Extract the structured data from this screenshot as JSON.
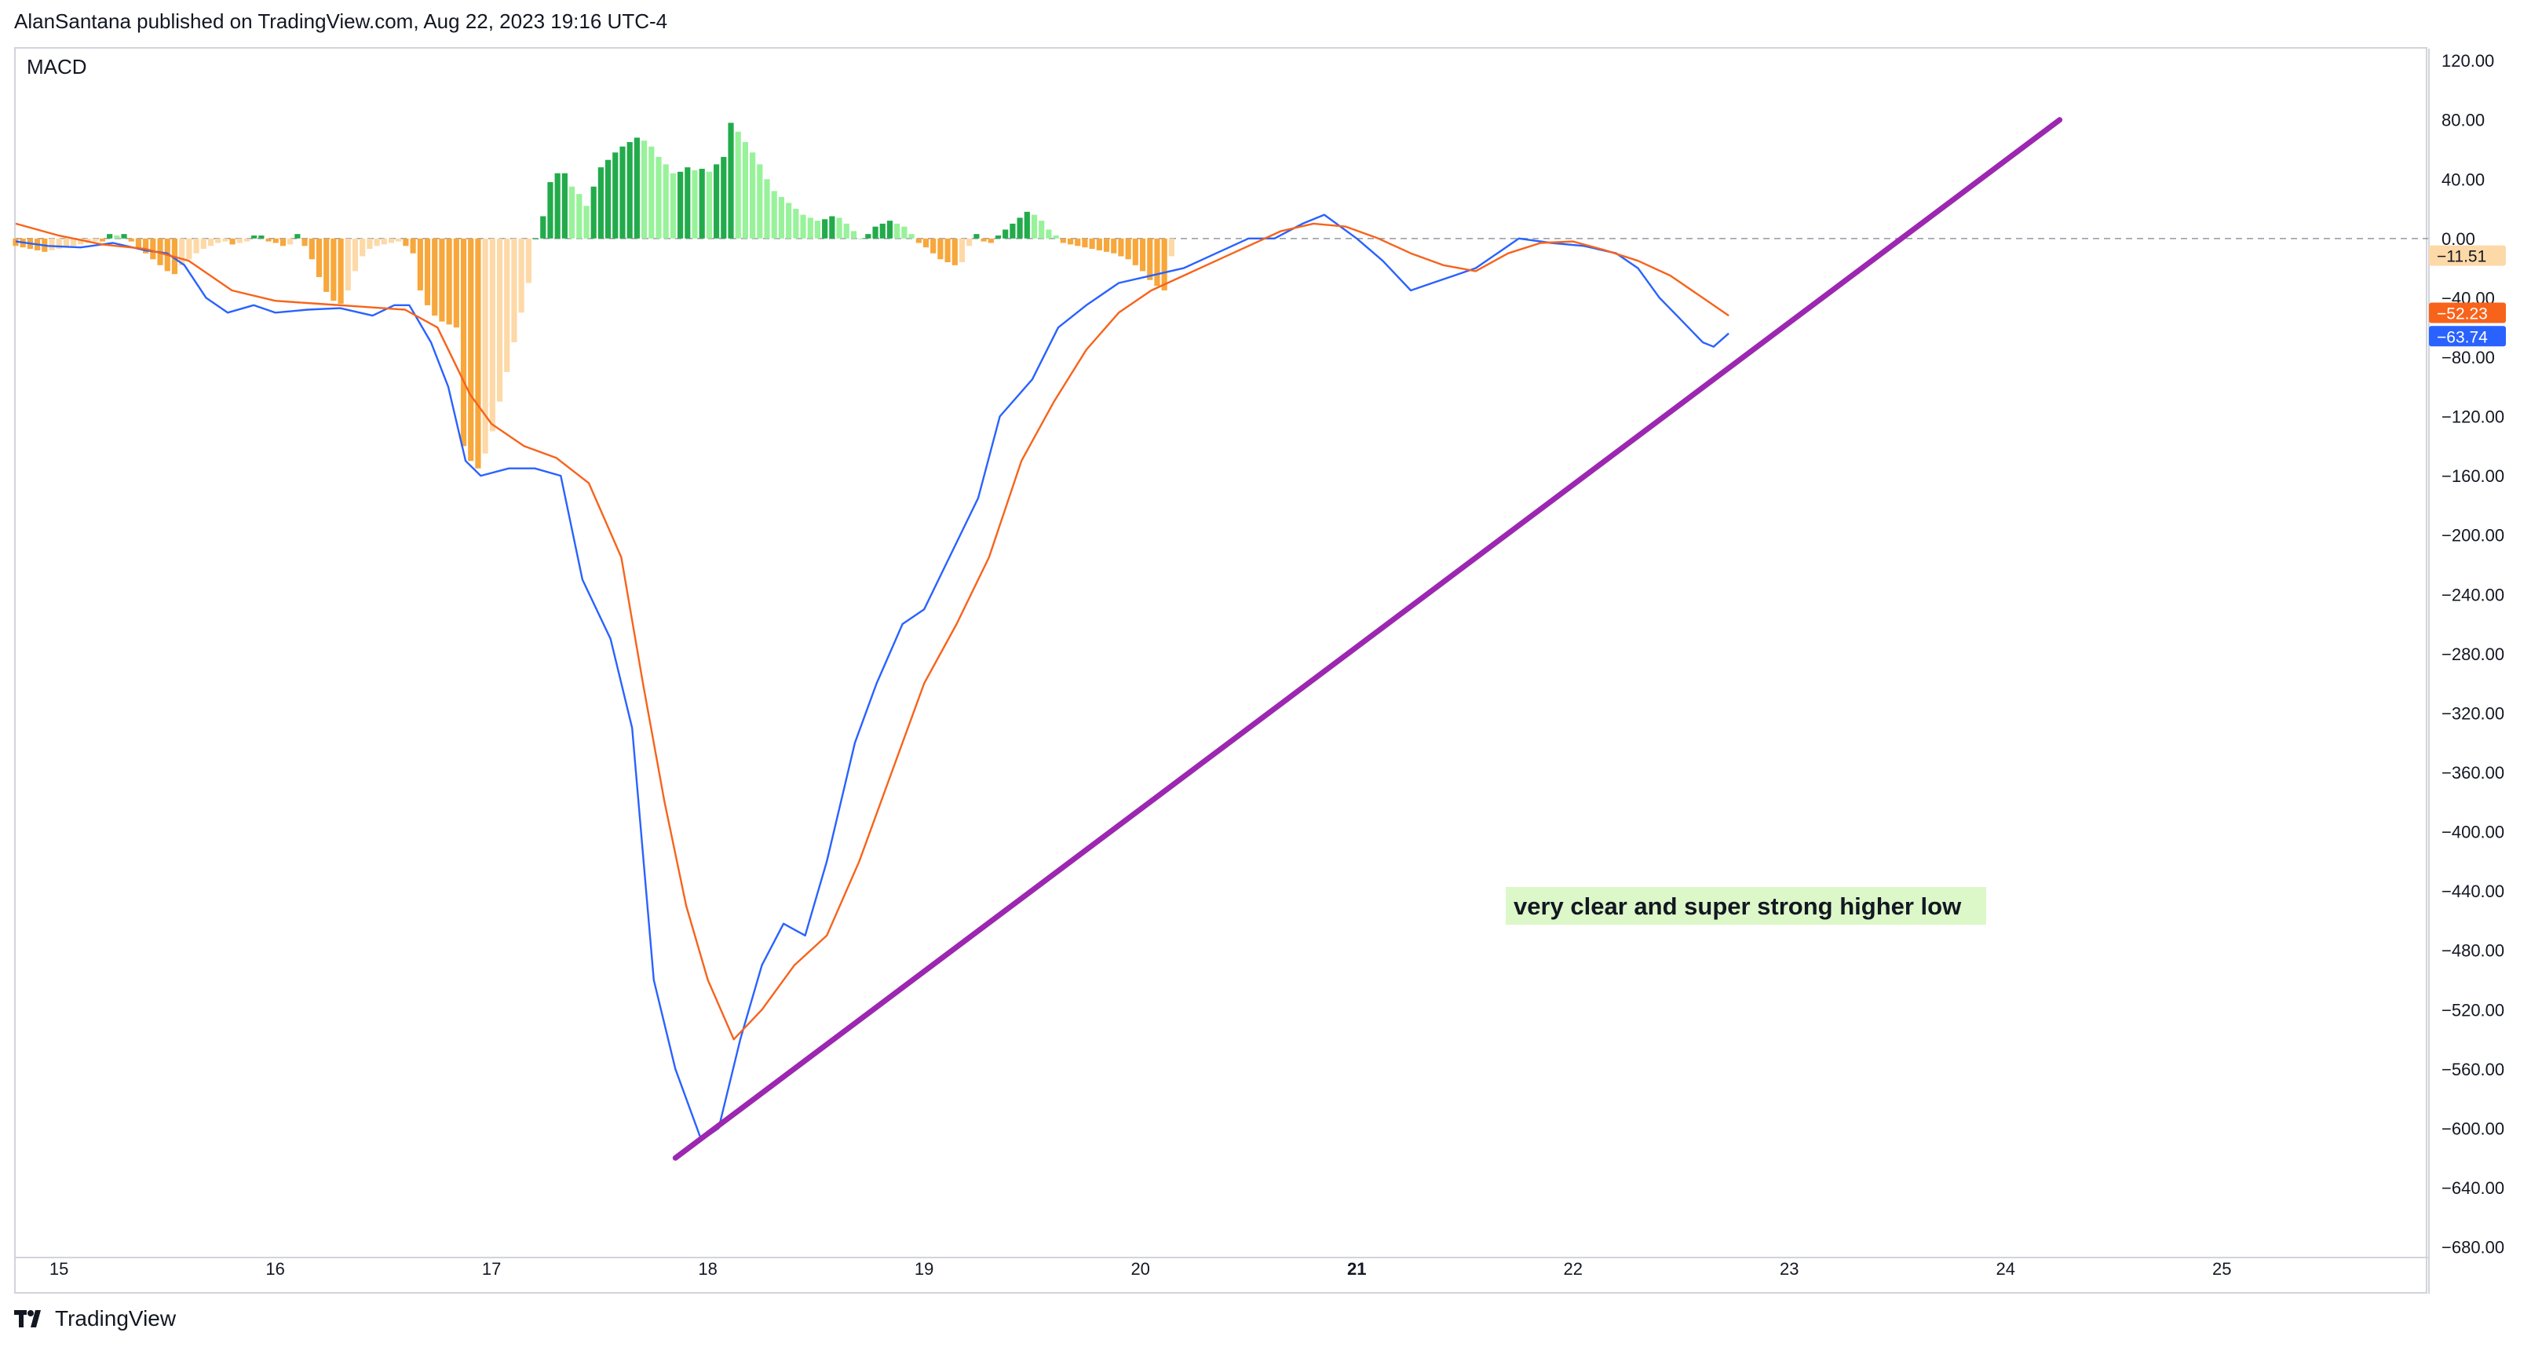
{
  "header": {
    "attribution": "AlanSantana published on TradingView.com, Aug 22, 2023 19:16 UTC-4"
  },
  "indicator": {
    "label": "MACD"
  },
  "footer": {
    "brand": "TradingView"
  },
  "annotation": {
    "text": "very clear and super strong higher low"
  },
  "chart_data": {
    "type": "line",
    "title": "MACD",
    "x_ticks": [
      {
        "x": 15,
        "label": "15",
        "bold": false
      },
      {
        "x": 16,
        "label": "16",
        "bold": false
      },
      {
        "x": 17,
        "label": "17",
        "bold": false
      },
      {
        "x": 18,
        "label": "18",
        "bold": false
      },
      {
        "x": 19,
        "label": "19",
        "bold": false
      },
      {
        "x": 20,
        "label": "20",
        "bold": false
      },
      {
        "x": 21,
        "label": "21",
        "bold": true
      },
      {
        "x": 22,
        "label": "22",
        "bold": false
      },
      {
        "x": 23,
        "label": "23",
        "bold": false
      },
      {
        "x": 24,
        "label": "24",
        "bold": false
      },
      {
        "x": 25,
        "label": "25",
        "bold": false
      }
    ],
    "y_ticks": [
      {
        "v": 120,
        "label": "120.00"
      },
      {
        "v": 80,
        "label": "80.00"
      },
      {
        "v": 40,
        "label": "40.00"
      },
      {
        "v": 0,
        "label": "0.00"
      },
      {
        "v": -40,
        "label": "−40.00"
      },
      {
        "v": -80,
        "label": "−80.00"
      },
      {
        "v": -120,
        "label": "−120.00"
      },
      {
        "v": -160,
        "label": "−160.00"
      },
      {
        "v": -200,
        "label": "−200.00"
      },
      {
        "v": -240,
        "label": "−240.00"
      },
      {
        "v": -280,
        "label": "−280.00"
      },
      {
        "v": -320,
        "label": "−320.00"
      },
      {
        "v": -360,
        "label": "−360.00"
      },
      {
        "v": -400,
        "label": "−400.00"
      },
      {
        "v": -440,
        "label": "−440.00"
      },
      {
        "v": -480,
        "label": "−480.00"
      },
      {
        "v": -520,
        "label": "−520.00"
      },
      {
        "v": -560,
        "label": "−560.00"
      },
      {
        "v": -600,
        "label": "−600.00"
      },
      {
        "v": -640,
        "label": "−640.00"
      },
      {
        "v": -680,
        "label": "−680.00"
      }
    ],
    "xlim": [
      14.8,
      25.95
    ],
    "ylim": [
      -685,
      128
    ],
    "zero_line": true,
    "price_labels": [
      {
        "value": -11.51,
        "label": "−11.51",
        "bg": "#fdd9a8",
        "fg": "#131722"
      },
      {
        "value": -52.23,
        "label": "−52.23",
        "bg": "#f7631b",
        "fg": "#ffffff"
      },
      {
        "value": -63.74,
        "label": "−63.74",
        "bg": "#2962ff",
        "fg": "#ffffff"
      }
    ],
    "colors": {
      "macd": "#2962ff",
      "signal": "#f7631b",
      "hist_pos_strong": "#22ab4a",
      "hist_pos_weak": "#98f29a",
      "hist_neg_strong": "#f7a73b",
      "hist_neg_weak": "#fdd9a8",
      "trendline": "#9c27b0",
      "annotation_bg": "#dcf7c8",
      "axis_text": "#131722",
      "grid": "#e0e3eb"
    },
    "series": [
      {
        "name": "MACD",
        "points": [
          [
            14.8,
            -2
          ],
          [
            14.95,
            -5
          ],
          [
            15.1,
            -6
          ],
          [
            15.25,
            -3
          ],
          [
            15.4,
            -8
          ],
          [
            15.5,
            -10
          ],
          [
            15.58,
            -18
          ],
          [
            15.68,
            -40
          ],
          [
            15.78,
            -50
          ],
          [
            15.9,
            -45
          ],
          [
            16.0,
            -50
          ],
          [
            16.15,
            -48
          ],
          [
            16.3,
            -47
          ],
          [
            16.45,
            -52
          ],
          [
            16.55,
            -45
          ],
          [
            16.62,
            -45
          ],
          [
            16.72,
            -70
          ],
          [
            16.8,
            -100
          ],
          [
            16.88,
            -150
          ],
          [
            16.95,
            -160
          ],
          [
            17.08,
            -155
          ],
          [
            17.2,
            -155
          ],
          [
            17.32,
            -160
          ],
          [
            17.42,
            -230
          ],
          [
            17.55,
            -270
          ],
          [
            17.65,
            -330
          ],
          [
            17.75,
            -500
          ],
          [
            17.85,
            -560
          ],
          [
            17.97,
            -608
          ],
          [
            18.05,
            -600
          ],
          [
            18.15,
            -540
          ],
          [
            18.25,
            -490
          ],
          [
            18.35,
            -462
          ],
          [
            18.45,
            -470
          ],
          [
            18.55,
            -420
          ],
          [
            18.68,
            -340
          ],
          [
            18.78,
            -300
          ],
          [
            18.9,
            -260
          ],
          [
            19.0,
            -250
          ],
          [
            19.1,
            -220
          ],
          [
            19.25,
            -175
          ],
          [
            19.35,
            -120
          ],
          [
            19.5,
            -95
          ],
          [
            19.62,
            -60
          ],
          [
            19.75,
            -45
          ],
          [
            19.9,
            -30
          ],
          [
            20.05,
            -25
          ],
          [
            20.2,
            -20
          ],
          [
            20.35,
            -10
          ],
          [
            20.5,
            0
          ],
          [
            20.62,
            0
          ],
          [
            20.75,
            10
          ],
          [
            20.85,
            16
          ],
          [
            21.0,
            0
          ],
          [
            21.12,
            -15
          ],
          [
            21.25,
            -35
          ],
          [
            21.35,
            -30
          ],
          [
            21.45,
            -25
          ],
          [
            21.55,
            -20
          ],
          [
            21.65,
            -10
          ],
          [
            21.75,
            0
          ],
          [
            21.9,
            -3
          ],
          [
            22.05,
            -5
          ],
          [
            22.2,
            -10
          ],
          [
            22.3,
            -20
          ],
          [
            22.4,
            -40
          ],
          [
            22.5,
            -55
          ],
          [
            22.6,
            -70
          ],
          [
            22.65,
            -73
          ],
          [
            22.72,
            -64
          ]
        ]
      },
      {
        "name": "Signal",
        "points": [
          [
            14.8,
            10
          ],
          [
            15.0,
            2
          ],
          [
            15.2,
            -4
          ],
          [
            15.4,
            -7
          ],
          [
            15.6,
            -15
          ],
          [
            15.8,
            -35
          ],
          [
            16.0,
            -42
          ],
          [
            16.2,
            -44
          ],
          [
            16.4,
            -46
          ],
          [
            16.6,
            -48
          ],
          [
            16.75,
            -60
          ],
          [
            16.9,
            -105
          ],
          [
            17.0,
            -125
          ],
          [
            17.15,
            -140
          ],
          [
            17.3,
            -148
          ],
          [
            17.45,
            -165
          ],
          [
            17.6,
            -215
          ],
          [
            17.7,
            -300
          ],
          [
            17.8,
            -380
          ],
          [
            17.9,
            -450
          ],
          [
            18.0,
            -500
          ],
          [
            18.12,
            -540
          ],
          [
            18.25,
            -520
          ],
          [
            18.4,
            -490
          ],
          [
            18.55,
            -470
          ],
          [
            18.7,
            -420
          ],
          [
            18.85,
            -360
          ],
          [
            19.0,
            -300
          ],
          [
            19.15,
            -260
          ],
          [
            19.3,
            -215
          ],
          [
            19.45,
            -150
          ],
          [
            19.6,
            -110
          ],
          [
            19.75,
            -75
          ],
          [
            19.9,
            -50
          ],
          [
            20.05,
            -35
          ],
          [
            20.2,
            -25
          ],
          [
            20.35,
            -15
          ],
          [
            20.5,
            -5
          ],
          [
            20.65,
            5
          ],
          [
            20.8,
            10
          ],
          [
            20.95,
            8
          ],
          [
            21.1,
            0
          ],
          [
            21.25,
            -10
          ],
          [
            21.4,
            -18
          ],
          [
            21.55,
            -22
          ],
          [
            21.7,
            -10
          ],
          [
            21.85,
            -3
          ],
          [
            22.0,
            -2
          ],
          [
            22.15,
            -8
          ],
          [
            22.3,
            -15
          ],
          [
            22.45,
            -25
          ],
          [
            22.6,
            -40
          ],
          [
            22.72,
            -52
          ]
        ]
      }
    ],
    "histogram": {
      "x_start": 14.8,
      "x_step": 0.0334,
      "values": [
        -5,
        -6,
        -7,
        -8,
        -9,
        -8,
        -7,
        -6,
        -5,
        -4,
        -3,
        -2,
        -2,
        3,
        2,
        3,
        -2,
        -6,
        -10,
        -14,
        -18,
        -22,
        -24,
        -18,
        -14,
        -10,
        -7,
        -5,
        -3,
        -2,
        -4,
        -3,
        -2,
        2,
        2,
        -2,
        -3,
        -5,
        -4,
        3,
        -5,
        -14,
        -26,
        -36,
        -42,
        -44,
        -35,
        -22,
        -12,
        -7,
        -5,
        -4,
        -3,
        -2,
        -5,
        -10,
        -35,
        -45,
        -52,
        -56,
        -58,
        -60,
        -140,
        -150,
        -155,
        -145,
        -130,
        -110,
        -90,
        -70,
        -50,
        -30,
        0,
        15,
        38,
        44,
        44,
        35,
        30,
        22,
        35,
        48,
        53,
        58,
        62,
        65,
        68,
        66,
        62,
        55,
        50,
        44,
        45,
        48,
        46,
        47,
        45,
        50,
        55,
        78,
        72,
        65,
        58,
        50,
        40,
        32,
        28,
        24,
        20,
        16,
        14,
        12,
        13,
        15,
        14,
        10,
        5,
        0,
        3,
        8,
        10,
        12,
        10,
        8,
        3,
        -3,
        -6,
        -10,
        -14,
        -16,
        -18,
        -16,
        -5,
        3,
        -2,
        -3,
        2,
        6,
        10,
        14,
        18,
        16,
        12,
        6,
        2,
        -3,
        -4,
        -5,
        -6,
        -7,
        -8,
        -9,
        -10,
        -12,
        -14,
        -18,
        -22,
        -28,
        -32,
        -35,
        -12
      ]
    },
    "trendline": {
      "from": [
        17.85,
        -620
      ],
      "to": [
        24.25,
        80
      ]
    }
  }
}
